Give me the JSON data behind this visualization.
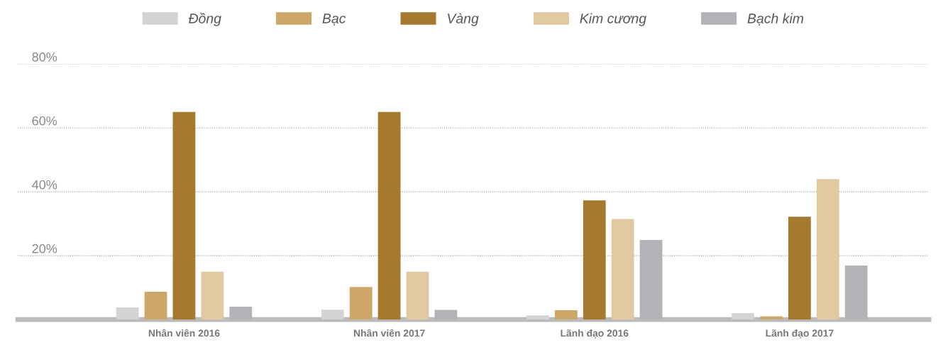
{
  "chart_data": {
    "type": "bar",
    "categories": [
      "Nhân viên 2016",
      "Nhân viên 2017",
      "Lãnh đạo 2016",
      "Lãnh đạo 2017"
    ],
    "series": [
      {
        "name": "Đồng",
        "color": "#d4d4d6",
        "values": [
          3.8,
          3.1,
          1.3,
          2
        ]
      },
      {
        "name": "Bạc",
        "color": "#cda66a",
        "values": [
          8.7,
          10.2,
          2.9,
          1
        ]
      },
      {
        "name": "Vàng",
        "color": "#a57a2f",
        "values": [
          65,
          65,
          37.3,
          32.2
        ]
      },
      {
        "name": "Kim cương",
        "color": "#e0c8a0",
        "values": [
          15,
          15,
          31.5,
          44
        ]
      },
      {
        "name": "Bạch kim",
        "color": "#b1b3b6",
        "values": [
          4,
          3,
          24.9,
          16.9
        ]
      }
    ],
    "ylim": [
      0,
      80
    ],
    "yticks": [
      {
        "value": 20,
        "label": "20%"
      },
      {
        "value": 40,
        "label": "40%"
      },
      {
        "value": 60,
        "label": "60%"
      },
      {
        "value": 80,
        "label": "80%"
      }
    ],
    "grid": "y",
    "legend": "top"
  }
}
